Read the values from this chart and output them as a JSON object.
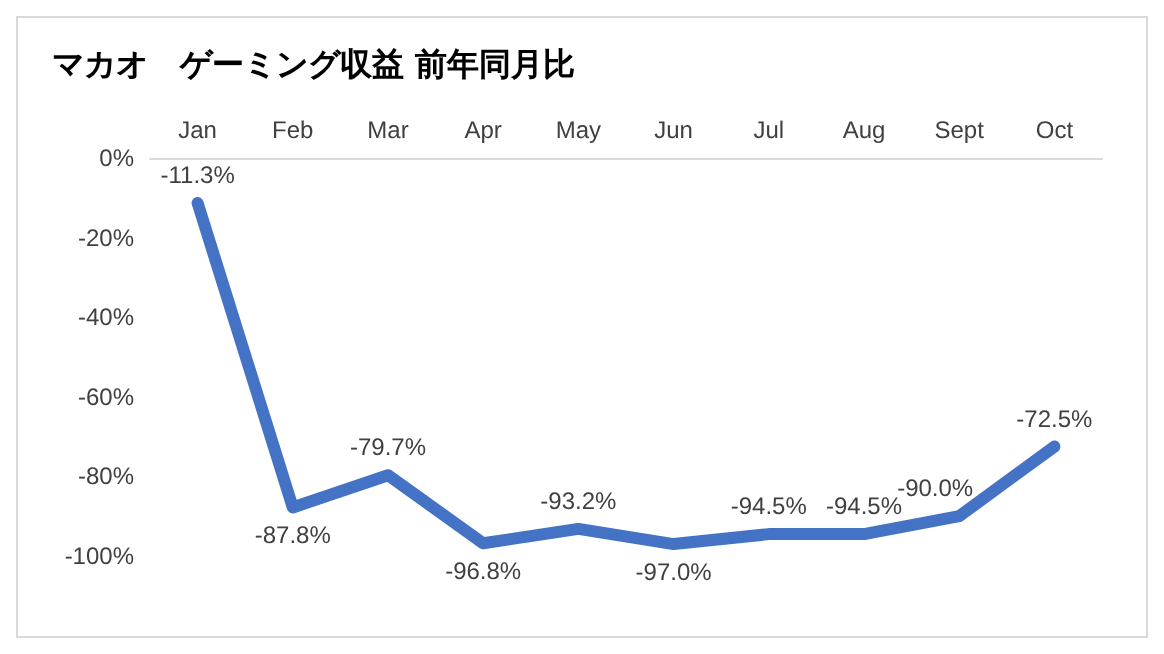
{
  "chart_data": {
    "type": "line",
    "title": "マカオ　ゲーミング収益 前年同月比",
    "categories": [
      "Jan",
      "Feb",
      "Mar",
      "Apr",
      "May",
      "Jun",
      "Jul",
      "Aug",
      "Sept",
      "Oct"
    ],
    "series": [
      {
        "color": "#4472c4",
        "values": [
          -11.3,
          -87.8,
          -79.7,
          -96.8,
          -93.2,
          -97.0,
          -94.5,
          -94.5,
          -90.0,
          -72.5
        ],
        "value_labels": [
          "-11.3%",
          "-87.8%",
          "-79.7%",
          "-96.8%",
          "-93.2%",
          "-97.0%",
          "-94.5%",
          "-94.5%",
          "-90.0%",
          "-72.5%"
        ]
      }
    ],
    "ylim": [
      -100,
      0
    ],
    "yticks": [
      {
        "value": 0,
        "label": "0%"
      },
      {
        "value": -20,
        "label": "-20%"
      },
      {
        "value": -40,
        "label": "-40%"
      },
      {
        "value": -60,
        "label": "-60%"
      },
      {
        "value": -80,
        "label": "-80%"
      },
      {
        "value": -100,
        "label": "-100%"
      }
    ],
    "grid": false,
    "marker": "none",
    "line_style": "solid"
  }
}
